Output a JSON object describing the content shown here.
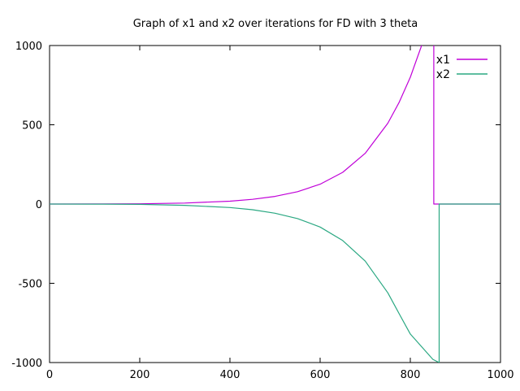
{
  "chart_data": {
    "type": "line",
    "title": "Graph of x1 and x2 over iterations for FD with 3 theta",
    "xlabel": "",
    "ylabel": "",
    "xlim": [
      0,
      1000
    ],
    "ylim": [
      -1000,
      1000
    ],
    "xticks": [
      0,
      200,
      400,
      600,
      800,
      1000
    ],
    "yticks": [
      -1000,
      -500,
      0,
      500,
      1000
    ],
    "grid": false,
    "legend_position": "top-right",
    "series": [
      {
        "name": "x1",
        "color": "#c000d8",
        "x": [
          0,
          100,
          200,
          300,
          400,
          450,
          500,
          550,
          600,
          650,
          700,
          750,
          775,
          800,
          825,
          840,
          850,
          852,
          852,
          1000
        ],
        "y": [
          0,
          0.3,
          1.5,
          6,
          18,
          30,
          48,
          78,
          125,
          200,
          320,
          510,
          640,
          800,
          1000,
          1140,
          1240,
          1000,
          0,
          0
        ]
      },
      {
        "name": "x2",
        "color": "#2aa882",
        "x": [
          0,
          100,
          200,
          300,
          400,
          450,
          500,
          550,
          600,
          650,
          700,
          750,
          775,
          800,
          825,
          850,
          864,
          864,
          1000
        ],
        "y": [
          0,
          -0.4,
          -2,
          -8,
          -22,
          -36,
          -58,
          -92,
          -145,
          -230,
          -360,
          -560,
          -690,
          -820,
          -900,
          -980,
          -1000,
          0,
          0
        ]
      }
    ]
  }
}
